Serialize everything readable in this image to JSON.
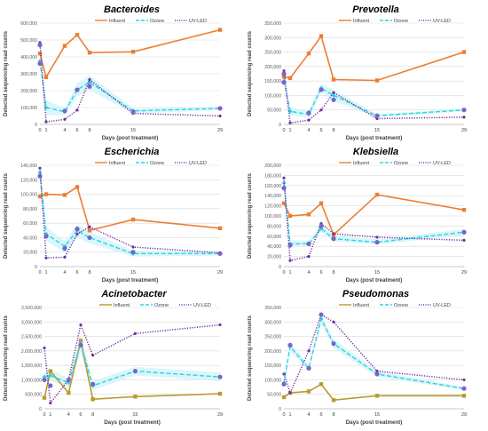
{
  "legend": {
    "influent": "Influent",
    "ozone": "Ozone",
    "uv": "UV-LED"
  },
  "colors": {
    "influent_a": "#ED7D31",
    "influent_b": "#B89A2F",
    "ozone": "#2BD3E6",
    "ozone_band": "#CFF4F8",
    "uv": "#7030A0",
    "marker_uv": "#7A63C9",
    "grid": "#D9D9D9",
    "axis_text": "#595959"
  },
  "chart_data": [
    {
      "type": "line",
      "title": "Bacteroides",
      "xlabel": "Days (post treatment)",
      "ylabel": "Detected sequencing read counts",
      "x": [
        0,
        1,
        4,
        6,
        8,
        15,
        29
      ],
      "x_ticks": [
        0,
        1,
        4,
        6,
        8,
        15,
        29
      ],
      "ylim": [
        0,
        600000
      ],
      "y_ticks": [
        0,
        100000,
        200000,
        300000,
        400000,
        500000,
        600000
      ],
      "y_tick_labels": [
        "0",
        "100,000",
        "200,000",
        "300,000",
        "400,000",
        "500,000",
        "600,000"
      ],
      "series": [
        {
          "name": "Influent",
          "values": [
            420000,
            280000,
            465000,
            530000,
            425000,
            430000,
            560000
          ]
        },
        {
          "name": "Ozone",
          "values": [
            375000,
            100000,
            75000,
            205000,
            250000,
            80000,
            95000
          ]
        },
        {
          "name": "UV-LED",
          "values": [
            485000,
            15000,
            30000,
            85000,
            265000,
            65000,
            50000
          ]
        }
      ],
      "ozone_band": {
        "low": [
          355000,
          55000,
          55000,
          165000,
          205000,
          65000,
          85000
        ],
        "high": [
          395000,
          145000,
          95000,
          245000,
          290000,
          95000,
          105000
        ]
      },
      "uv_markers": [
        [
          0,
          470000
        ],
        [
          0,
          360000
        ],
        [
          4,
          80000
        ],
        [
          6,
          205000
        ],
        [
          8,
          225000
        ],
        [
          15,
          75000
        ],
        [
          29,
          95000
        ]
      ]
    },
    {
      "type": "line",
      "title": "Prevotella",
      "xlabel": "Days (post treatment)",
      "ylabel": "Detected sequencing read counts",
      "x": [
        0,
        1,
        4,
        6,
        8,
        15,
        29
      ],
      "x_ticks": [
        0,
        1,
        4,
        6,
        8,
        15,
        29
      ],
      "ylim": [
        0,
        350000
      ],
      "y_ticks": [
        0,
        50000,
        100000,
        150000,
        200000,
        250000,
        300000,
        350000
      ],
      "y_tick_labels": [
        "0",
        "50,000",
        "100,000",
        "150,000",
        "200,000",
        "250,000",
        "300,000",
        "350,000"
      ],
      "series": [
        {
          "name": "Influent",
          "values": [
            165000,
            160000,
            245000,
            305000,
            155000,
            152000,
            250000
          ]
        },
        {
          "name": "Ozone",
          "values": [
            150000,
            45000,
            35000,
            125000,
            100000,
            30000,
            50000
          ]
        },
        {
          "name": "UV-LED",
          "values": [
            185000,
            5000,
            15000,
            50000,
            110000,
            20000,
            25000
          ]
        }
      ],
      "ozone_band": {
        "low": [
          140000,
          30000,
          25000,
          110000,
          80000,
          25000,
          45000
        ],
        "high": [
          160000,
          60000,
          45000,
          140000,
          120000,
          35000,
          55000
        ]
      },
      "uv_markers": [
        [
          0,
          175000
        ],
        [
          0,
          145000
        ],
        [
          4,
          40000
        ],
        [
          6,
          120000
        ],
        [
          8,
          85000
        ],
        [
          15,
          30000
        ],
        [
          29,
          50000
        ]
      ]
    },
    {
      "type": "line",
      "title": "Escherichia",
      "xlabel": "Days (post treatment)",
      "ylabel": "Detected sequencing read counts",
      "x": [
        0,
        1,
        4,
        6,
        8,
        15,
        29
      ],
      "x_ticks": [
        0,
        1,
        4,
        6,
        8,
        15,
        29
      ],
      "ylim": [
        0,
        140000
      ],
      "y_ticks": [
        0,
        20000,
        40000,
        60000,
        80000,
        100000,
        120000,
        140000
      ],
      "y_tick_labels": [
        "0",
        "20,000",
        "40,000",
        "60,000",
        "80,000",
        "100,000",
        "120,000",
        "140,000"
      ],
      "series": [
        {
          "name": "Influent",
          "values": [
            97000,
            100000,
            99000,
            110000,
            50000,
            65000,
            53000
          ]
        },
        {
          "name": "Ozone",
          "values": [
            130000,
            45000,
            28000,
            50000,
            40000,
            18000,
            18000
          ]
        },
        {
          "name": "UV-LED",
          "values": [
            136000,
            12000,
            13000,
            45000,
            55000,
            27000,
            19000
          ]
        }
      ],
      "ozone_band": {
        "low": [
          120000,
          35000,
          20000,
          40000,
          32000,
          14000,
          15000
        ],
        "high": [
          138000,
          55000,
          35000,
          58000,
          48000,
          22000,
          21000
        ]
      },
      "uv_markers": [
        [
          0,
          125000
        ],
        [
          1,
          42000
        ],
        [
          4,
          25000
        ],
        [
          6,
          52000
        ],
        [
          8,
          40000
        ],
        [
          15,
          20000
        ],
        [
          29,
          18000
        ]
      ]
    },
    {
      "type": "line",
      "title": "Klebsiella",
      "xlabel": "Days (post treatment)",
      "ylabel": "Detected sequencing read counts",
      "x": [
        0,
        1,
        4,
        6,
        8,
        15,
        29
      ],
      "x_ticks": [
        0,
        1,
        4,
        6,
        8,
        15,
        29
      ],
      "ylim": [
        0,
        200000
      ],
      "y_ticks": [
        0,
        20000,
        40000,
        60000,
        80000,
        100000,
        120000,
        140000,
        160000,
        180000,
        200000
      ],
      "y_tick_labels": [
        "0",
        "20,000",
        "40,000",
        "60,000",
        "80,000",
        "100,000",
        "120,000",
        "140,000",
        "160,000",
        "180,000",
        "200,000"
      ],
      "series": [
        {
          "name": "Influent",
          "values": [
            125000,
            100000,
            103000,
            125000,
            63000,
            142000,
            112000
          ]
        },
        {
          "name": "Ozone",
          "values": [
            165000,
            45000,
            45000,
            75000,
            55000,
            48000,
            68000
          ]
        },
        {
          "name": "UV-LED",
          "values": [
            175000,
            12000,
            20000,
            85000,
            65000,
            58000,
            52000
          ]
        }
      ],
      "ozone_band": {
        "low": [
          155000,
          40000,
          40000,
          68000,
          50000,
          44000,
          62000
        ],
        "high": [
          172000,
          52000,
          52000,
          82000,
          62000,
          54000,
          74000
        ]
      },
      "uv_markers": [
        [
          0,
          155000
        ],
        [
          1,
          42000
        ],
        [
          4,
          45000
        ],
        [
          6,
          80000
        ],
        [
          8,
          55000
        ],
        [
          15,
          48000
        ],
        [
          29,
          68000
        ]
      ]
    },
    {
      "type": "line",
      "title": "Acinetobacter",
      "xlabel": "Days (post treatment)",
      "ylabel": "Detected sequencing read counts",
      "x": [
        0,
        1,
        4,
        6,
        8,
        15,
        29
      ],
      "x_ticks": [
        0,
        1,
        4,
        6,
        8,
        15,
        29
      ],
      "ylim": [
        0,
        3500000
      ],
      "y_ticks": [
        0,
        500000,
        1000000,
        1500000,
        2000000,
        2500000,
        3000000,
        3500000
      ],
      "y_tick_labels": [
        "0",
        "500,000",
        "1,000,000",
        "1,500,000",
        "2,000,000",
        "2,500,000",
        "3,000,000",
        "3,500,000"
      ],
      "series": [
        {
          "name": "Influent",
          "values": [
            380000,
            1300000,
            550000,
            2350000,
            330000,
            420000,
            520000
          ]
        },
        {
          "name": "Ozone",
          "values": [
            1100000,
            1150000,
            900000,
            2250000,
            800000,
            1300000,
            1100000
          ]
        },
        {
          "name": "UV-LED",
          "values": [
            2100000,
            200000,
            1000000,
            2900000,
            1850000,
            2600000,
            2900000
          ]
        }
      ],
      "ozone_band": {
        "low": [
          950000,
          950000,
          750000,
          1950000,
          650000,
          1150000,
          950000
        ],
        "high": [
          1250000,
          1350000,
          1050000,
          2550000,
          950000,
          1450000,
          1250000
        ]
      },
      "uv_markers": [
        [
          0,
          1000000
        ],
        [
          1,
          800000
        ],
        [
          4,
          1000000
        ],
        [
          6,
          2200000
        ],
        [
          8,
          850000
        ],
        [
          15,
          1300000
        ],
        [
          29,
          1100000
        ]
      ]
    },
    {
      "type": "line",
      "title": "Pseudomonas",
      "xlabel": "Days (post treatment)",
      "ylabel": "Detected sequencing read counts",
      "x": [
        0,
        1,
        4,
        6,
        8,
        15,
        29
      ],
      "x_ticks": [
        0,
        1,
        4,
        6,
        8,
        15,
        29
      ],
      "ylim": [
        0,
        350000
      ],
      "y_ticks": [
        0,
        50000,
        100000,
        150000,
        200000,
        250000,
        300000,
        350000
      ],
      "y_tick_labels": [
        "0",
        "50,000",
        "100,000",
        "150,000",
        "200,000",
        "250,000",
        "300,000",
        "350,000"
      ],
      "series": [
        {
          "name": "Influent",
          "values": [
            40000,
            55000,
            60000,
            85000,
            30000,
            45000,
            45000
          ]
        },
        {
          "name": "Ozone",
          "values": [
            90000,
            215000,
            140000,
            310000,
            225000,
            120000,
            70000
          ]
        },
        {
          "name": "UV-LED",
          "values": [
            120000,
            55000,
            200000,
            325000,
            300000,
            130000,
            100000
          ]
        }
      ],
      "ozone_band": {
        "low": [
          80000,
          200000,
          130000,
          295000,
          210000,
          110000,
          65000
        ],
        "high": [
          100000,
          230000,
          150000,
          325000,
          240000,
          130000,
          75000
        ]
      },
      "uv_markers": [
        [
          0,
          85000
        ],
        [
          1,
          220000
        ],
        [
          4,
          140000
        ],
        [
          6,
          325000
        ],
        [
          8,
          225000
        ],
        [
          15,
          120000
        ],
        [
          29,
          70000
        ]
      ]
    }
  ]
}
